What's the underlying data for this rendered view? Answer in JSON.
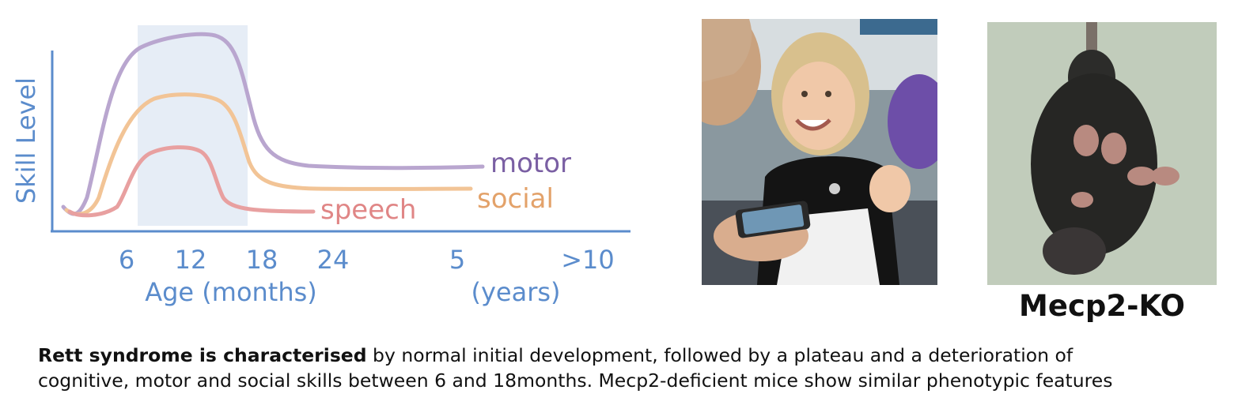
{
  "chart": {
    "ylabel": "Skill Level",
    "xlabel_months": "Age (months)",
    "xlabel_years": "(years)",
    "ticks": [
      "6",
      "12",
      "18",
      "24",
      "5",
      ">10"
    ],
    "curves": [
      {
        "label": "motor",
        "color": "#7a5fa3",
        "line_color": "#b9a6cf"
      },
      {
        "label": "social",
        "color": "#e3a26a",
        "line_color": "#f2c496"
      },
      {
        "label": "speech",
        "color": "#e08686",
        "line_color": "#e8a0a0"
      }
    ],
    "axis_color": "#5b8ccc",
    "highlight_color": "#e6edf6"
  },
  "photos": {
    "mouse_caption": "Mecp2-KO"
  },
  "caption": {
    "bold": "Rett syndrome is characterised",
    "line1_rest": " by normal initial development, followed by a plateau and a deterioration of",
    "line2": "cognitive, motor and social skills between 6 and 18months. Mecp2-deficient mice show similar phenotypic features"
  }
}
